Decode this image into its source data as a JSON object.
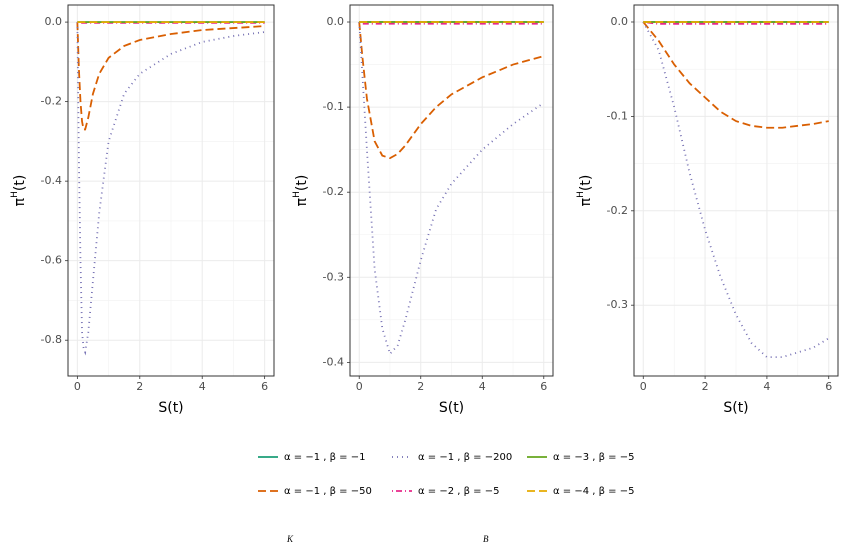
{
  "chart_data": [
    {
      "type": "line",
      "xlabel": "S(t)",
      "ylabel": {
        "base": "π",
        "sup": "H",
        "rest": "(t)"
      },
      "x": [
        0,
        0.05,
        0.1,
        0.15,
        0.2,
        0.25,
        0.35,
        0.5,
        0.7,
        1,
        1.5,
        2,
        3,
        4,
        5,
        6
      ],
      "xlim": [
        -0.3,
        6.3
      ],
      "xticks": [
        0,
        2,
        4,
        6
      ],
      "ylim": [
        -0.89,
        0.043
      ],
      "yticks": [
        {
          "value": 0,
          "label": "0.0"
        },
        -0.2,
        -0.4,
        -0.6,
        -0.8
      ],
      "grid": true,
      "series": [
        {
          "name": "α = −1 , β = −1",
          "color": "#1b9e77",
          "dash": "solid",
          "values": [
            0,
            0,
            0,
            0,
            0,
            0,
            0,
            0,
            0,
            0,
            0,
            0,
            0,
            0,
            0,
            0
          ]
        },
        {
          "name": "α = −1 , β = −50",
          "color": "#d95f02",
          "dash": "dashed",
          "values": [
            0,
            -0.12,
            -0.2,
            -0.25,
            -0.27,
            -0.27,
            -0.24,
            -0.18,
            -0.13,
            -0.09,
            -0.06,
            -0.045,
            -0.03,
            -0.02,
            -0.015,
            -0.01
          ]
        },
        {
          "name": "α = −1 , β = −200",
          "color": "#7570b3",
          "dash": "dotted",
          "values": [
            0,
            -0.35,
            -0.6,
            -0.78,
            -0.82,
            -0.83,
            -0.78,
            -0.65,
            -0.48,
            -0.3,
            -0.18,
            -0.13,
            -0.08,
            -0.05,
            -0.035,
            -0.025
          ]
        },
        {
          "name": "α = −2 , β = −5",
          "color": "#e7298a",
          "dash": "dotdash",
          "values": [
            0,
            -0.002,
            -0.002,
            -0.002,
            -0.002,
            -0.002,
            -0.002,
            -0.002,
            -0.002,
            -0.002,
            -0.002,
            -0.002,
            -0.002,
            -0.002,
            -0.002,
            -0.002
          ]
        },
        {
          "name": "α = −3 , β = −5",
          "color": "#66a61e",
          "dash": "solid",
          "values": [
            0,
            0,
            0,
            0,
            0,
            0,
            0,
            0,
            0,
            0,
            0,
            0,
            0,
            0,
            0,
            0
          ]
        },
        {
          "name": "α = −4 , β = −5",
          "color": "#e6ab02",
          "dash": "dashed",
          "values": [
            0,
            0,
            0,
            0,
            0,
            0,
            0,
            0,
            0,
            0,
            0,
            0,
            0,
            0,
            0,
            0
          ]
        }
      ]
    },
    {
      "type": "line",
      "xlabel": "S(t)",
      "ylabel": {
        "base": "π",
        "sup": "H",
        "rest": "(t)"
      },
      "x": [
        0,
        0.1,
        0.25,
        0.5,
        0.75,
        1,
        1.25,
        1.5,
        2,
        2.5,
        3,
        4,
        5,
        6
      ],
      "xlim": [
        -0.3,
        6.3
      ],
      "xticks": [
        0,
        2,
        4,
        6
      ],
      "ylim": [
        -0.416,
        0.02
      ],
      "yticks": [
        {
          "value": 0,
          "label": "0.0"
        },
        -0.1,
        -0.2,
        -0.3,
        -0.4
      ],
      "grid": true,
      "series": [
        {
          "color": "#1b9e77",
          "dash": "solid",
          "values": [
            0,
            0,
            0,
            0,
            0,
            0,
            0,
            0,
            0,
            0,
            0,
            0,
            0,
            0
          ]
        },
        {
          "color": "#d95f02",
          "dash": "dashed",
          "values": [
            0,
            -0.04,
            -0.09,
            -0.14,
            -0.157,
            -0.16,
            -0.155,
            -0.145,
            -0.12,
            -0.1,
            -0.085,
            -0.065,
            -0.05,
            -0.04
          ]
        },
        {
          "color": "#7570b3",
          "dash": "dotted",
          "values": [
            0,
            -0.06,
            -0.15,
            -0.29,
            -0.36,
            -0.39,
            -0.38,
            -0.35,
            -0.28,
            -0.22,
            -0.19,
            -0.15,
            -0.12,
            -0.095
          ]
        },
        {
          "color": "#e7298a",
          "dash": "dotdash",
          "values": [
            0,
            -0.002,
            -0.002,
            -0.002,
            -0.002,
            -0.002,
            -0.002,
            -0.002,
            -0.002,
            -0.002,
            -0.002,
            -0.002,
            -0.002,
            -0.002
          ]
        },
        {
          "color": "#66a61e",
          "dash": "solid",
          "values": [
            0,
            0,
            0,
            0,
            0,
            0,
            0,
            0,
            0,
            0,
            0,
            0,
            0,
            0
          ]
        },
        {
          "color": "#e6ab02",
          "dash": "dashed",
          "values": [
            0,
            0,
            0,
            0,
            0,
            0,
            0,
            0,
            0,
            0,
            0,
            0,
            0,
            0
          ]
        }
      ]
    },
    {
      "type": "line",
      "xlabel": "S(t)",
      "ylabel": {
        "base": "π",
        "sup": "H",
        "rest": "(t)"
      },
      "x": [
        0,
        0.5,
        1,
        1.5,
        2,
        2.5,
        3,
        3.5,
        4,
        4.5,
        5,
        5.5,
        6
      ],
      "xlim": [
        -0.3,
        6.3
      ],
      "xticks": [
        0,
        2,
        4,
        6
      ],
      "ylim": [
        -0.375,
        0.018
      ],
      "yticks": [
        {
          "value": 0,
          "label": "0.0"
        },
        -0.1,
        -0.2,
        -0.3
      ],
      "grid": true,
      "series": [
        {
          "color": "#1b9e77",
          "dash": "solid",
          "values": [
            0,
            0,
            0,
            0,
            0,
            0,
            0,
            0,
            0,
            0,
            0,
            0,
            0
          ]
        },
        {
          "color": "#d95f02",
          "dash": "dashed",
          "values": [
            0,
            -0.02,
            -0.045,
            -0.065,
            -0.08,
            -0.095,
            -0.105,
            -0.11,
            -0.112,
            -0.112,
            -0.11,
            -0.108,
            -0.105
          ]
        },
        {
          "color": "#7570b3",
          "dash": "dotted",
          "values": [
            0,
            -0.03,
            -0.09,
            -0.16,
            -0.22,
            -0.27,
            -0.31,
            -0.34,
            -0.355,
            -0.355,
            -0.35,
            -0.345,
            -0.335
          ]
        },
        {
          "color": "#e7298a",
          "dash": "dotdash",
          "values": [
            0,
            -0.002,
            -0.002,
            -0.002,
            -0.002,
            -0.002,
            -0.002,
            -0.002,
            -0.002,
            -0.002,
            -0.002,
            -0.002,
            -0.002
          ]
        },
        {
          "color": "#66a61e",
          "dash": "solid",
          "values": [
            0,
            0,
            0,
            0,
            0,
            0,
            0,
            0,
            0,
            0,
            0,
            0,
            0
          ]
        },
        {
          "color": "#e6ab02",
          "dash": "dashed",
          "values": [
            0,
            0,
            0,
            0,
            0,
            0,
            0,
            0,
            0,
            0,
            0,
            0,
            0
          ]
        }
      ]
    }
  ],
  "footer_fragments": [
    "K",
    "B"
  ]
}
